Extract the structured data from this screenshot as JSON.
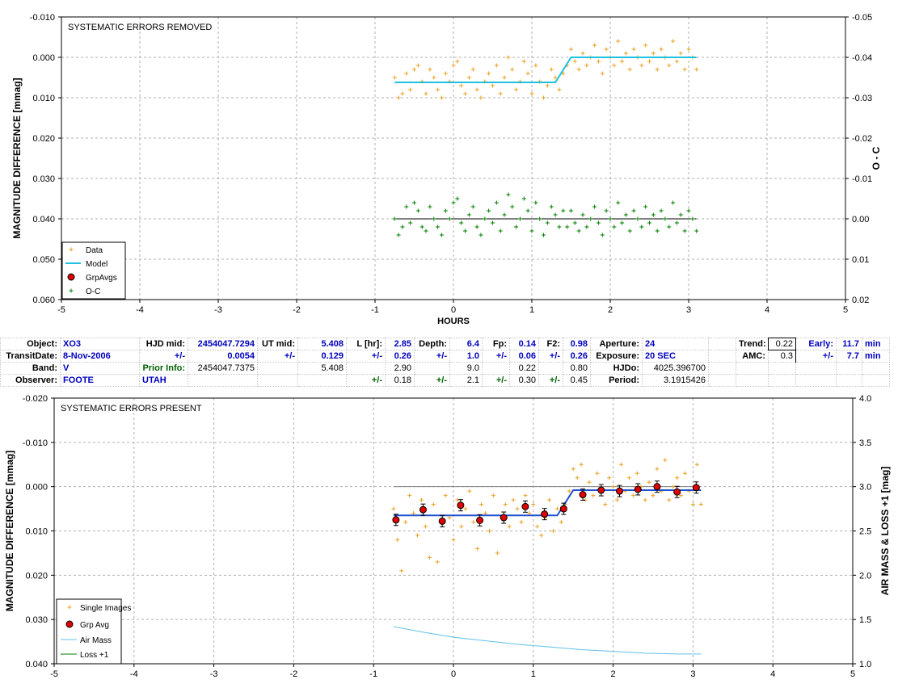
{
  "chart_data": [
    {
      "type": "scatter",
      "title": "SYSTEMATIC ERRORS REMOVED",
      "xlabel": "HOURS",
      "ylabel": "MAGNITUDE DIFFERENCE [mmag]",
      "y2label": "O - C",
      "xlim": [
        -5,
        5
      ],
      "ylim": [
        -0.01,
        0.06
      ],
      "y_inverted": true,
      "y2lim": [
        -0.05,
        0.02
      ],
      "y2_inverted": true,
      "x_ticks": [
        "-5",
        "-4",
        "-3",
        "-2",
        "-1",
        "0",
        "1",
        "2",
        "3",
        "4",
        "5"
      ],
      "y_ticks": [
        "-0.010",
        "0.000",
        "0.010",
        "0.020",
        "0.030",
        "0.040",
        "0.050",
        "0.060"
      ],
      "y2_ticks": [
        "-0.05",
        "-0.04",
        "-0.03",
        "-0.02",
        "-0.01",
        "0.00",
        "0.01",
        "0.02"
      ],
      "grid": true,
      "legend_position": "bottom-left",
      "legend": [
        "Data",
        "Model",
        "GrpAvgs",
        "O-C"
      ],
      "colors": {
        "data": "#e8a020",
        "model": "#20c0e0",
        "grpavg": "#e00000",
        "oc": "#008000",
        "ocline": "#000000"
      },
      "series": [
        {
          "name": "Data",
          "x": [
            -0.75,
            -0.7,
            -0.65,
            -0.6,
            -0.55,
            -0.5,
            -0.45,
            -0.4,
            -0.35,
            -0.3,
            -0.25,
            -0.2,
            -0.15,
            -0.1,
            -0.05,
            0.0,
            0.05,
            0.1,
            0.15,
            0.2,
            0.25,
            0.3,
            0.35,
            0.4,
            0.45,
            0.5,
            0.55,
            0.6,
            0.65,
            0.7,
            0.75,
            0.8,
            0.85,
            0.9,
            0.95,
            1.0,
            1.05,
            1.1,
            1.15,
            1.2,
            1.25,
            1.3,
            1.35,
            1.4,
            1.45,
            1.5,
            1.55,
            1.6,
            1.65,
            1.7,
            1.75,
            1.8,
            1.85,
            1.9,
            1.95,
            2.0,
            2.05,
            2.1,
            2.15,
            2.2,
            2.25,
            2.3,
            2.35,
            2.4,
            2.45,
            2.5,
            2.55,
            2.6,
            2.65,
            2.7,
            2.75,
            2.8,
            2.85,
            2.9,
            2.95,
            3.0,
            3.05,
            3.1
          ],
          "y": [
            0.005,
            0.01,
            0.009,
            0.004,
            0.008,
            0.003,
            0.002,
            0.006,
            0.009,
            0.003,
            0.005,
            0.008,
            0.01,
            0.004,
            0.006,
            0.002,
            0.001,
            0.007,
            0.009,
            0.005,
            0.003,
            0.008,
            0.01,
            0.006,
            0.004,
            0.007,
            0.002,
            0.009,
            0.005,
            0.0,
            0.003,
            0.008,
            0.006,
            0.001,
            0.004,
            0.009,
            0.002,
            0.006,
            0.01,
            0.007,
            0.003,
            0.005,
            0.008,
            0.004,
            0.002,
            -0.002,
            0.001,
            0.003,
            -0.001,
            0.002,
            0.0,
            -0.003,
            0.001,
            0.004,
            -0.002,
            0.0,
            0.002,
            -0.004,
            0.001,
            -0.001,
            0.003,
            -0.002,
            0.0,
            0.002,
            -0.003,
            0.001,
            -0.001,
            0.003,
            -0.002,
            0.0,
            0.002,
            -0.004,
            0.001,
            -0.001,
            0.003,
            -0.002,
            0.0,
            0.003
          ]
        },
        {
          "name": "Model",
          "x": [
            -0.75,
            1.3,
            1.5,
            3.1
          ],
          "y": [
            0.0062,
            0.0062,
            0.0,
            0.0
          ]
        },
        {
          "name": "O-C",
          "x": [
            -0.75,
            -0.7,
            -0.65,
            -0.6,
            -0.55,
            -0.5,
            -0.45,
            -0.4,
            -0.35,
            -0.3,
            -0.25,
            -0.2,
            -0.15,
            -0.1,
            -0.05,
            0.0,
            0.05,
            0.1,
            0.15,
            0.2,
            0.25,
            0.3,
            0.35,
            0.4,
            0.45,
            0.5,
            0.55,
            0.6,
            0.65,
            0.7,
            0.75,
            0.8,
            0.85,
            0.9,
            0.95,
            1.0,
            1.05,
            1.1,
            1.15,
            1.2,
            1.25,
            1.3,
            1.35,
            1.4,
            1.45,
            1.5,
            1.55,
            1.6,
            1.65,
            1.7,
            1.75,
            1.8,
            1.85,
            1.9,
            1.95,
            2.0,
            2.05,
            2.1,
            2.15,
            2.2,
            2.25,
            2.3,
            2.35,
            2.4,
            2.45,
            2.5,
            2.55,
            2.6,
            2.65,
            2.7,
            2.75,
            2.8,
            2.85,
            2.9,
            2.95,
            3.0,
            3.05,
            3.1
          ],
          "y": [
            0.0,
            0.004,
            0.002,
            -0.003,
            0.001,
            -0.004,
            -0.002,
            0.002,
            0.003,
            -0.003,
            0.0,
            0.002,
            0.004,
            -0.002,
            0.0,
            -0.004,
            -0.005,
            0.001,
            0.003,
            -0.001,
            -0.003,
            0.002,
            0.004,
            0.0,
            -0.002,
            0.001,
            -0.004,
            0.003,
            -0.001,
            -0.006,
            -0.003,
            0.002,
            0.0,
            -0.005,
            -0.002,
            0.003,
            -0.004,
            0.0,
            0.004,
            0.001,
            -0.003,
            -0.001,
            0.002,
            -0.002,
            0.002,
            -0.002,
            0.001,
            0.003,
            -0.001,
            0.002,
            0.0,
            -0.003,
            0.001,
            0.004,
            -0.002,
            0.0,
            0.002,
            -0.004,
            0.001,
            -0.001,
            0.003,
            -0.002,
            0.0,
            0.002,
            -0.003,
            0.001,
            -0.001,
            0.003,
            -0.002,
            0.0,
            0.002,
            -0.004,
            0.001,
            -0.001,
            0.003,
            -0.002,
            0.0,
            0.003
          ]
        }
      ]
    },
    {
      "type": "scatter",
      "title": "SYSTEMATIC ERRORS PRESENT",
      "xlabel": "",
      "ylabel": "MAGNITUDE DIFFERENCE [mmag]",
      "y2label": "AIR MASS & LOSS +1 [mag]",
      "xlim": [
        -5,
        5
      ],
      "ylim": [
        -0.02,
        0.04
      ],
      "y_inverted": true,
      "y2lim": [
        1.0,
        4.0
      ],
      "x_ticks": [
        "-5",
        "-4",
        "-3",
        "-2",
        "-1",
        "0",
        "1",
        "2",
        "3",
        "4",
        "5"
      ],
      "y_ticks": [
        "-0.020",
        "-0.010",
        "0.000",
        "0.010",
        "0.020",
        "0.030",
        "0.040"
      ],
      "y2_ticks": [
        "1.0",
        "1.5",
        "2.0",
        "2.5",
        "3.0",
        "3.5",
        "4.0"
      ],
      "grid": true,
      "legend_position": "bottom-left",
      "legend": [
        "Single Images",
        "Grp Avg",
        "Air Mass",
        "Loss +1"
      ],
      "colors": {
        "data": "#e8a020",
        "grpavg": "#e00000",
        "airmass": "#60c0e8",
        "loss": "#008000",
        "model": "#2050d0",
        "ref": "#808080"
      },
      "series": [
        {
          "name": "Single Images",
          "x": [
            -0.75,
            -0.7,
            -0.65,
            -0.6,
            -0.55,
            -0.5,
            -0.45,
            -0.4,
            -0.35,
            -0.3,
            -0.25,
            -0.2,
            -0.15,
            -0.1,
            -0.05,
            0.0,
            0.05,
            0.1,
            0.15,
            0.2,
            0.25,
            0.3,
            0.35,
            0.4,
            0.45,
            0.5,
            0.55,
            0.6,
            0.65,
            0.7,
            0.75,
            0.8,
            0.85,
            0.9,
            0.95,
            1.0,
            1.05,
            1.1,
            1.15,
            1.2,
            1.25,
            1.3,
            1.35,
            1.4,
            1.45,
            1.5,
            1.55,
            1.6,
            1.65,
            1.7,
            1.75,
            1.8,
            1.85,
            1.9,
            1.95,
            2.0,
            2.05,
            2.1,
            2.15,
            2.2,
            2.25,
            2.3,
            2.35,
            2.4,
            2.45,
            2.5,
            2.55,
            2.6,
            2.65,
            2.7,
            2.75,
            2.8,
            2.85,
            2.9,
            2.95,
            3.0,
            3.05,
            3.1
          ],
          "y": [
            0.005,
            0.012,
            0.019,
            0.008,
            0.002,
            0.006,
            0.011,
            0.003,
            0.009,
            0.016,
            0.004,
            0.017,
            0.008,
            0.002,
            0.007,
            0.012,
            0.003,
            0.009,
            0.005,
            0.001,
            0.008,
            0.014,
            0.004,
            0.006,
            0.01,
            0.002,
            0.015,
            0.007,
            0.004,
            0.009,
            0.003,
            0.005,
            0.008,
            0.002,
            0.006,
            0.004,
            0.009,
            0.011,
            0.007,
            0.003,
            0.01,
            0.005,
            0.008,
            0.004,
            0.001,
            -0.004,
            -0.002,
            -0.005,
            0.003,
            -0.001,
            0.002,
            -0.003,
            0.001,
            0.004,
            -0.002,
            0.0,
            0.003,
            -0.005,
            0.001,
            -0.002,
            0.002,
            -0.003,
            0.0,
            0.003,
            -0.001,
            0.002,
            -0.004,
            0.001,
            -0.006,
            0.003,
            0.0,
            -0.002,
            0.002,
            -0.003,
            0.001,
            0.004,
            -0.005,
            0.004
          ]
        },
        {
          "name": "Grp Avg",
          "x": [
            -0.72,
            -0.38,
            -0.14,
            0.09,
            0.33,
            0.63,
            0.9,
            1.14,
            1.38,
            1.62,
            1.85,
            2.08,
            2.31,
            2.55,
            2.8,
            3.04
          ],
          "y": [
            0.0075,
            0.0052,
            0.0078,
            0.0042,
            0.0076,
            0.007,
            0.0045,
            0.0062,
            0.005,
            0.0018,
            0.0008,
            0.001,
            0.0006,
            0.0,
            0.0012,
            0.0002
          ]
        },
        {
          "name": "Model",
          "x": [
            -0.75,
            1.3,
            1.5,
            3.1
          ],
          "y": [
            0.0065,
            0.0065,
            0.0008,
            0.0008
          ]
        },
        {
          "name": "Air Mass",
          "x": [
            -0.75,
            -0.4,
            0.0,
            0.4,
            0.8,
            1.2,
            1.6,
            2.0,
            2.4,
            2.8,
            3.1
          ],
          "y": [
            1.42,
            1.36,
            1.3,
            1.26,
            1.22,
            1.19,
            1.16,
            1.14,
            1.12,
            1.11,
            1.11
          ]
        }
      ]
    }
  ],
  "info_table": {
    "rows": [
      [
        "Object:",
        "XO3",
        "HJD mid:",
        "2454047.7294",
        "UT mid:",
        "5.408",
        "L [hr]:",
        "2.85",
        "Depth:",
        "6.4",
        "Fp:",
        "0.14",
        "F2:",
        "0.98",
        "Aperture:",
        "24",
        "",
        "Trend:",
        "0.22",
        "Early:",
        "11.7",
        "min"
      ],
      [
        "TransitDate:",
        "8-Nov-2006",
        "+/-",
        "0.0054",
        "+/-",
        "0.129",
        "+/-",
        "0.26",
        "+/-",
        "1.0",
        "+/-",
        "0.06",
        "+/-",
        "0.26",
        "Exposure:",
        "20 SEC",
        "",
        "AMC:",
        "0.3",
        "+/-",
        "7.7",
        "min"
      ],
      [
        "Band:",
        "V",
        "Prior Info:",
        "2454047.7375",
        "",
        "5.408",
        "",
        "2.90",
        "",
        "9.0",
        "",
        "0.22",
        "",
        "0.80",
        "HJDo:",
        "4025.396700",
        "",
        "",
        "",
        "",
        "",
        ""
      ],
      [
        "Observer:",
        "FOOTE",
        "UTAH",
        "",
        "",
        "",
        "+/-",
        "0.18",
        "+/-",
        "2.1",
        "+/-",
        "0.30",
        "+/-",
        "0.45",
        "Period:",
        "3.1915426",
        "",
        "",
        "",
        "",
        "",
        ""
      ]
    ]
  }
}
